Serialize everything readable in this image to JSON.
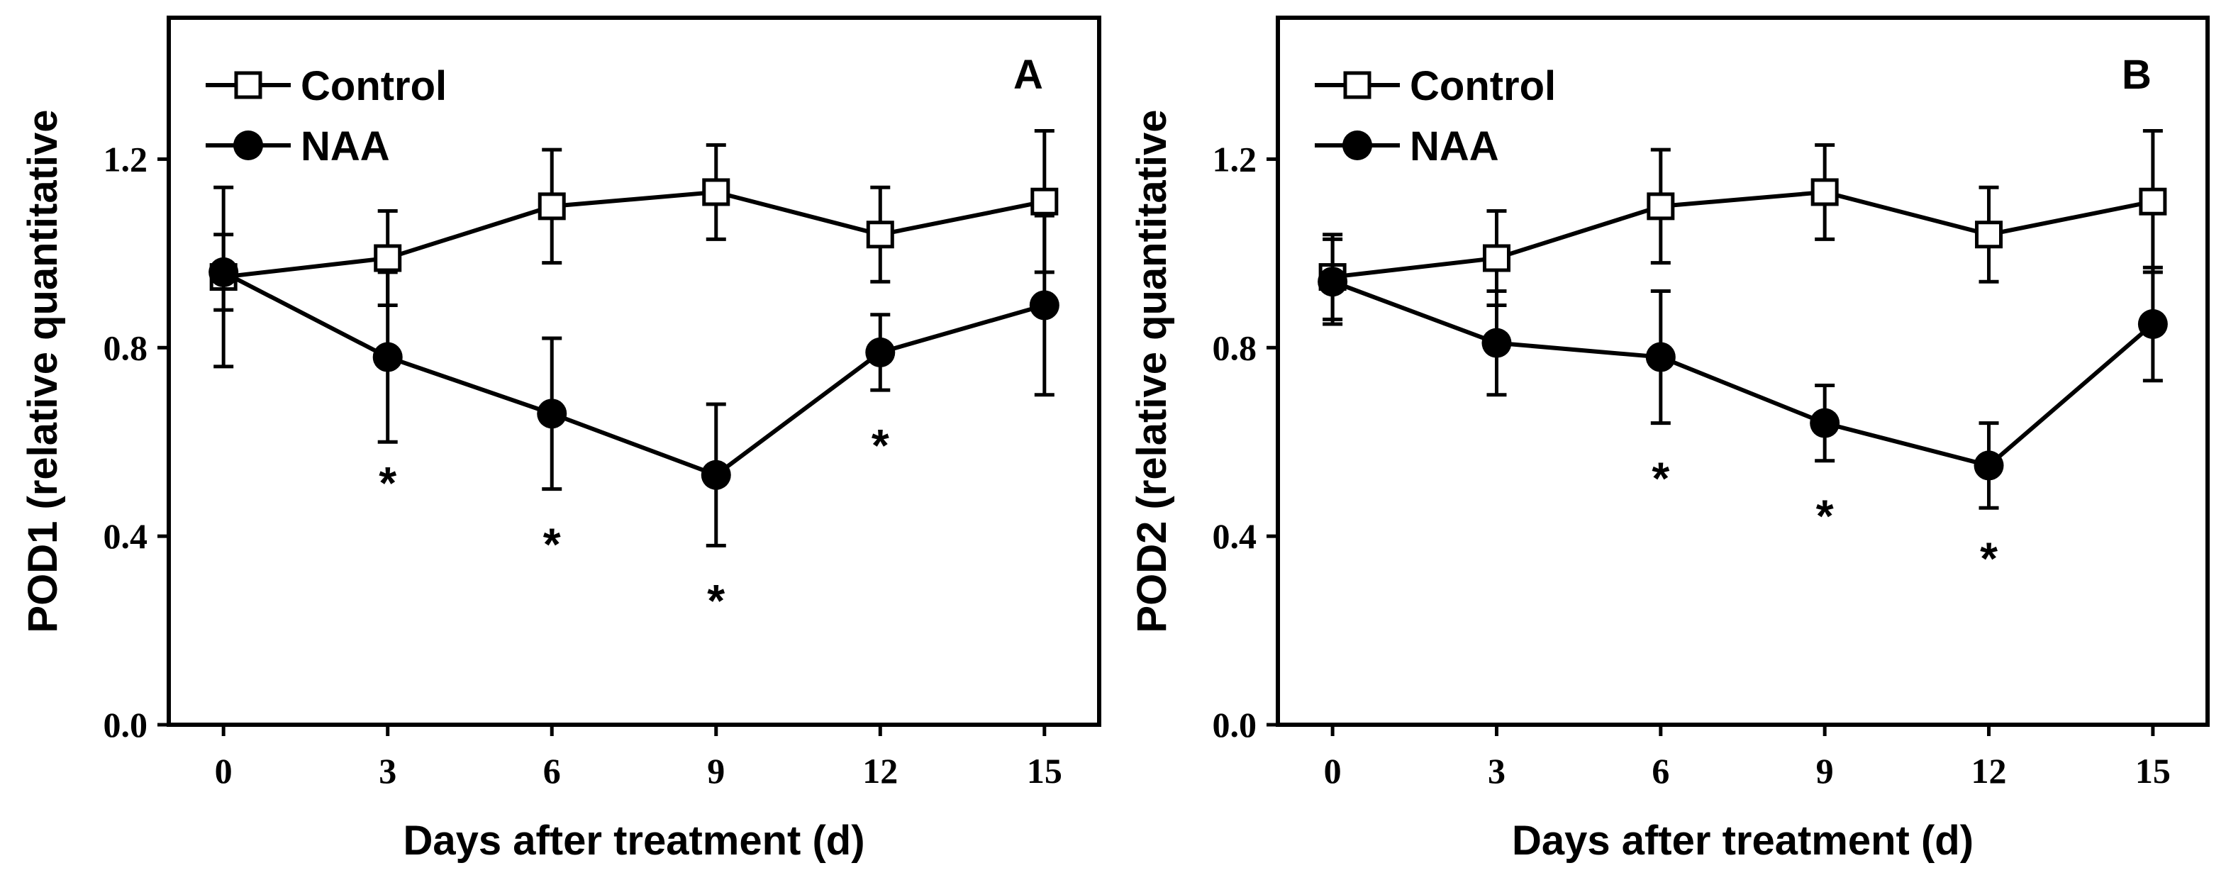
{
  "chart_data": [
    {
      "type": "line",
      "panel_label": "A",
      "ylabel": "POD1 (relative quantitative",
      "xlabel": "Days after treatment (d)",
      "x": [
        0,
        3,
        6,
        9,
        12,
        15
      ],
      "xticks": [
        "0",
        "3",
        "6",
        "9",
        "12",
        "15"
      ],
      "yticks": [
        "0.0",
        "0.4",
        "0.8",
        "1.2"
      ],
      "xlim": [
        -1,
        16
      ],
      "ylim": [
        0,
        1.5
      ],
      "legend_position": "top-left",
      "series": [
        {
          "name": "Control",
          "marker": "open-square",
          "values": [
            0.95,
            0.99,
            1.1,
            1.13,
            1.04,
            1.11
          ],
          "errors": [
            0.19,
            0.1,
            0.12,
            0.1,
            0.1,
            0.15
          ]
        },
        {
          "name": "NAA",
          "marker": "filled-circle",
          "values": [
            0.96,
            0.78,
            0.66,
            0.53,
            0.79,
            0.89
          ],
          "errors": [
            0.08,
            0.18,
            0.16,
            0.15,
            0.08,
            0.19
          ]
        }
      ],
      "significance": [
        {
          "x": 3,
          "y": 0.54,
          "text": "*"
        },
        {
          "x": 6,
          "y": 0.41,
          "text": "*"
        },
        {
          "x": 9,
          "y": 0.29,
          "text": "*"
        },
        {
          "x": 12,
          "y": 0.62,
          "text": "*"
        }
      ]
    },
    {
      "type": "line",
      "panel_label": "B",
      "ylabel": "POD2 (relative quantitative",
      "xlabel": "Days after treatment (d)",
      "x": [
        0,
        3,
        6,
        9,
        12,
        15
      ],
      "xticks": [
        "0",
        "3",
        "6",
        "9",
        "12",
        "15"
      ],
      "yticks": [
        "0.0",
        "0.4",
        "0.8",
        "1.2"
      ],
      "xlim": [
        -1,
        16
      ],
      "ylim": [
        0,
        1.5
      ],
      "legend_position": "top-left",
      "series": [
        {
          "name": "Control",
          "marker": "open-square",
          "values": [
            0.95,
            0.99,
            1.1,
            1.13,
            1.04,
            1.11
          ],
          "errors": [
            0.09,
            0.1,
            0.12,
            0.1,
            0.1,
            0.15
          ]
        },
        {
          "name": "NAA",
          "marker": "filled-circle",
          "values": [
            0.94,
            0.81,
            0.78,
            0.64,
            0.55,
            0.85
          ],
          "errors": [
            0.09,
            0.11,
            0.14,
            0.08,
            0.09,
            0.12
          ]
        }
      ],
      "significance": [
        {
          "x": 6,
          "y": 0.55,
          "text": "*"
        },
        {
          "x": 9,
          "y": 0.47,
          "text": "*"
        },
        {
          "x": 12,
          "y": 0.38,
          "text": "*"
        }
      ]
    }
  ]
}
